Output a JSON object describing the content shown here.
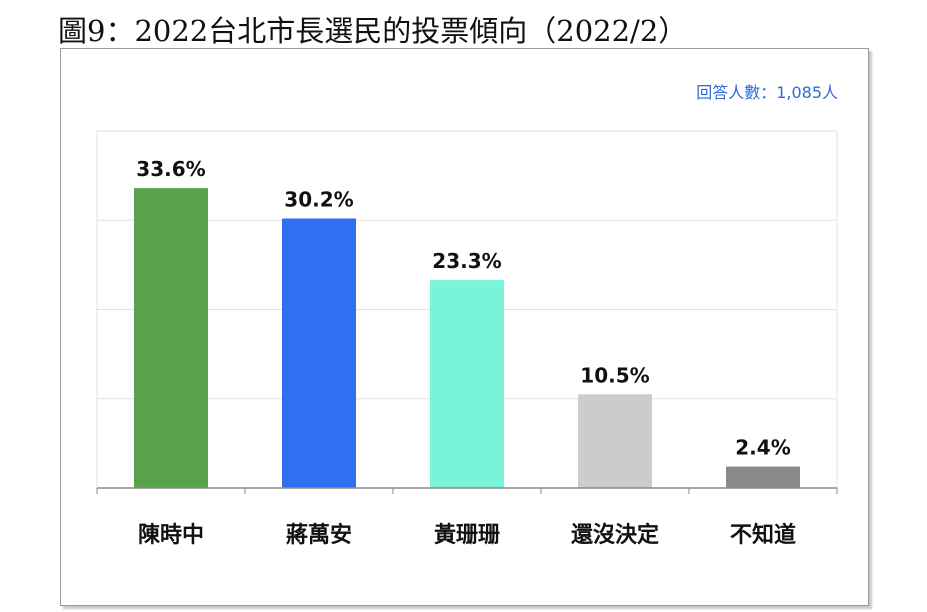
{
  "figure": {
    "title": "圖9：2022台北市長選民的投票傾向（2022/2）",
    "respondents_note": "回答人數：1,085人"
  },
  "colors": {
    "respondents_text": "#2f6bd6",
    "gridline": "#e2e2e2",
    "axis": "#8a8a8a"
  },
  "chart_data": {
    "type": "bar",
    "title": "",
    "xlabel": "",
    "ylabel": "",
    "ylim": [
      0,
      40
    ],
    "grid": true,
    "legend": "none",
    "categories": [
      "陳時中",
      "蔣萬安",
      "黃珊珊",
      "還沒決定",
      "不知道"
    ],
    "values": [
      33.6,
      30.2,
      23.3,
      10.5,
      2.4
    ],
    "value_labels": [
      "33.6%",
      "30.2%",
      "23.3%",
      "10.5%",
      "2.4%"
    ],
    "bar_colors": [
      "#5aa14c",
      "#2f6ff0",
      "#78f5d8",
      "#cccccc",
      "#8a8a8a"
    ]
  }
}
